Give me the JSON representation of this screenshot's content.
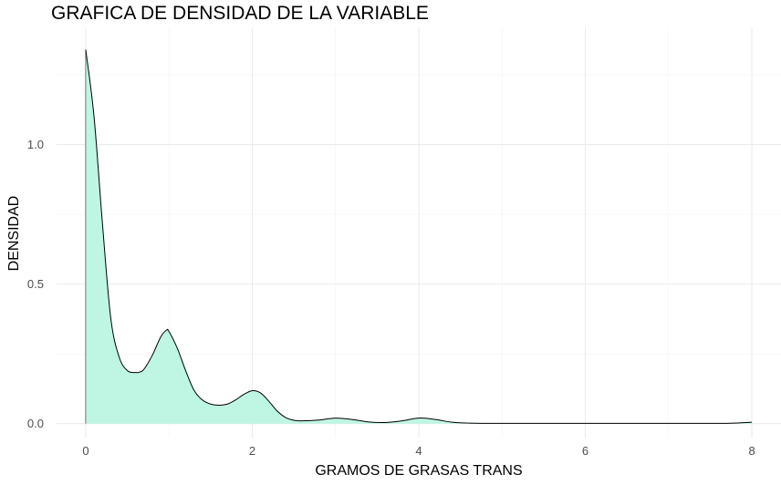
{
  "chart_data": {
    "type": "area",
    "title": "GRAFICA DE DENSIDAD DE LA VARIABLE",
    "xlabel": "GRAMOS DE GRASAS TRANS",
    "ylabel": "DENSIDAD",
    "xlim": [
      -0.35,
      8.35
    ],
    "ylim": [
      -0.05,
      1.42
    ],
    "x_ticks": [
      0,
      2,
      4,
      6,
      8
    ],
    "y_ticks": [
      0.0,
      0.5,
      1.0
    ],
    "x_tick_labels": [
      "0",
      "2",
      "4",
      "6",
      "8"
    ],
    "y_tick_labels": [
      "0.0",
      "0.5",
      "1.0"
    ],
    "grid": true,
    "legend": "none",
    "fill_color": "#bff5e3",
    "line_color": "#000000",
    "series": [
      {
        "x": [
          0,
          0.1,
          0.2,
          0.3,
          0.4,
          0.5,
          0.6,
          0.65,
          0.7,
          0.8,
          0.9,
          0.97,
          1.0,
          1.1,
          1.2,
          1.3,
          1.4,
          1.5,
          1.6,
          1.7,
          1.8,
          1.9,
          2.0,
          2.1,
          2.2,
          2.3,
          2.4,
          2.5,
          2.6,
          2.8,
          3.0,
          3.2,
          3.4,
          3.6,
          3.8,
          4.0,
          4.2,
          4.4,
          4.6,
          5.0,
          6.0,
          7.0,
          7.7,
          8.0
        ],
        "y": [
          1.34,
          1.1,
          0.72,
          0.38,
          0.24,
          0.19,
          0.183,
          0.185,
          0.195,
          0.245,
          0.31,
          0.335,
          0.33,
          0.27,
          0.19,
          0.12,
          0.085,
          0.07,
          0.066,
          0.07,
          0.085,
          0.105,
          0.118,
          0.11,
          0.08,
          0.045,
          0.022,
          0.012,
          0.01,
          0.013,
          0.02,
          0.015,
          0.006,
          0.004,
          0.01,
          0.02,
          0.015,
          0.005,
          0.002,
          0.001,
          0.001,
          0.001,
          0.001,
          0.005
        ]
      }
    ]
  }
}
